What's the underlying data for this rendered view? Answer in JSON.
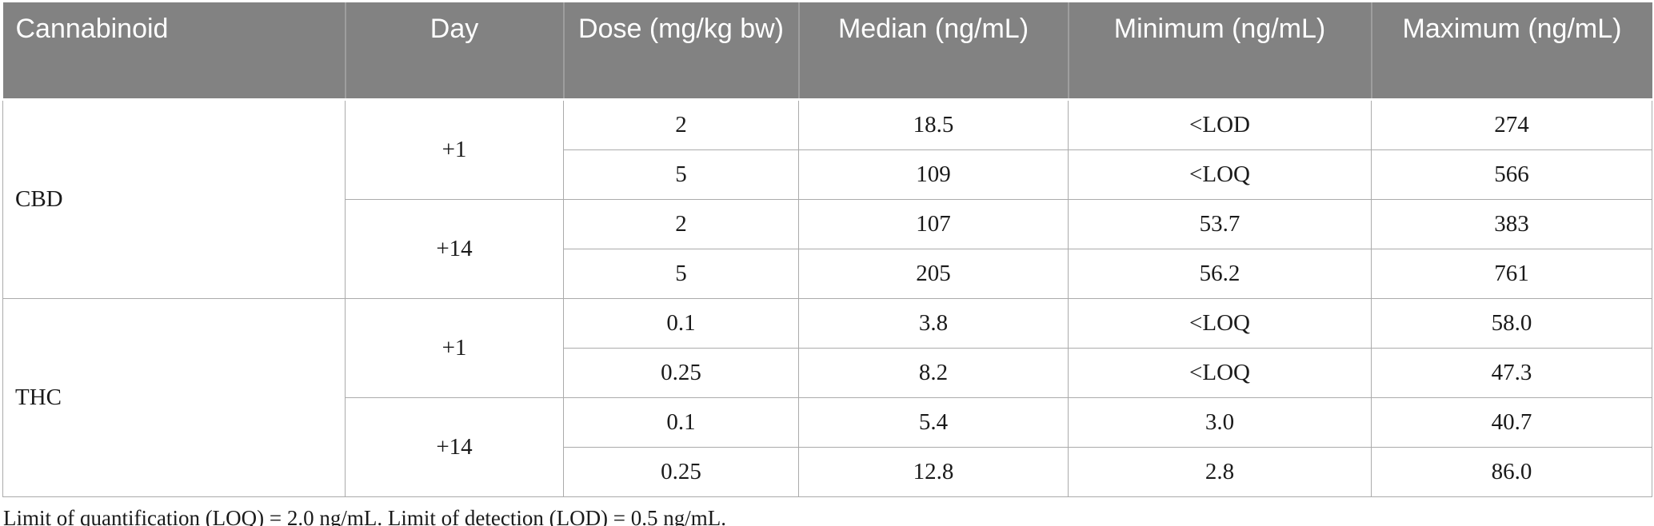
{
  "table": {
    "columns": [
      {
        "label": "Cannabinoid"
      },
      {
        "label": "Day"
      },
      {
        "label": "Dose (mg/kg bw)"
      },
      {
        "label": "Median (ng/mL)"
      },
      {
        "label": "Minimum (ng/mL)"
      },
      {
        "label": "Maximum (ng/mL)"
      }
    ],
    "groups": [
      {
        "cannabinoid": "CBD",
        "days": [
          {
            "day": "+1",
            "rows": [
              {
                "dose": "2",
                "median": "18.5",
                "minimum": "<LOD",
                "maximum": "274"
              },
              {
                "dose": "5",
                "median": "109",
                "minimum": "<LOQ",
                "maximum": "566"
              }
            ]
          },
          {
            "day": "+14",
            "rows": [
              {
                "dose": "2",
                "median": "107",
                "minimum": "53.7",
                "maximum": "383"
              },
              {
                "dose": "5",
                "median": "205",
                "minimum": "56.2",
                "maximum": "761"
              }
            ]
          }
        ]
      },
      {
        "cannabinoid": "THC",
        "days": [
          {
            "day": "+1",
            "rows": [
              {
                "dose": "0.1",
                "median": "3.8",
                "minimum": "<LOQ",
                "maximum": "58.0"
              },
              {
                "dose": "0.25",
                "median": "8.2",
                "minimum": "<LOQ",
                "maximum": "47.3"
              }
            ]
          },
          {
            "day": "+14",
            "rows": [
              {
                "dose": "0.1",
                "median": "5.4",
                "minimum": "3.0",
                "maximum": "40.7"
              },
              {
                "dose": "0.25",
                "median": "12.8",
                "minimum": "2.8",
                "maximum": "86.0"
              }
            ]
          }
        ]
      }
    ]
  },
  "colors": {
    "header_bg": "#828282",
    "header_text": "#ffffff",
    "body_border": "#ababab"
  },
  "footnote": "Limit of quantification (LOQ) = 2.0 ng/mL. Limit of detection (LOD) = 0.5 ng/mL."
}
